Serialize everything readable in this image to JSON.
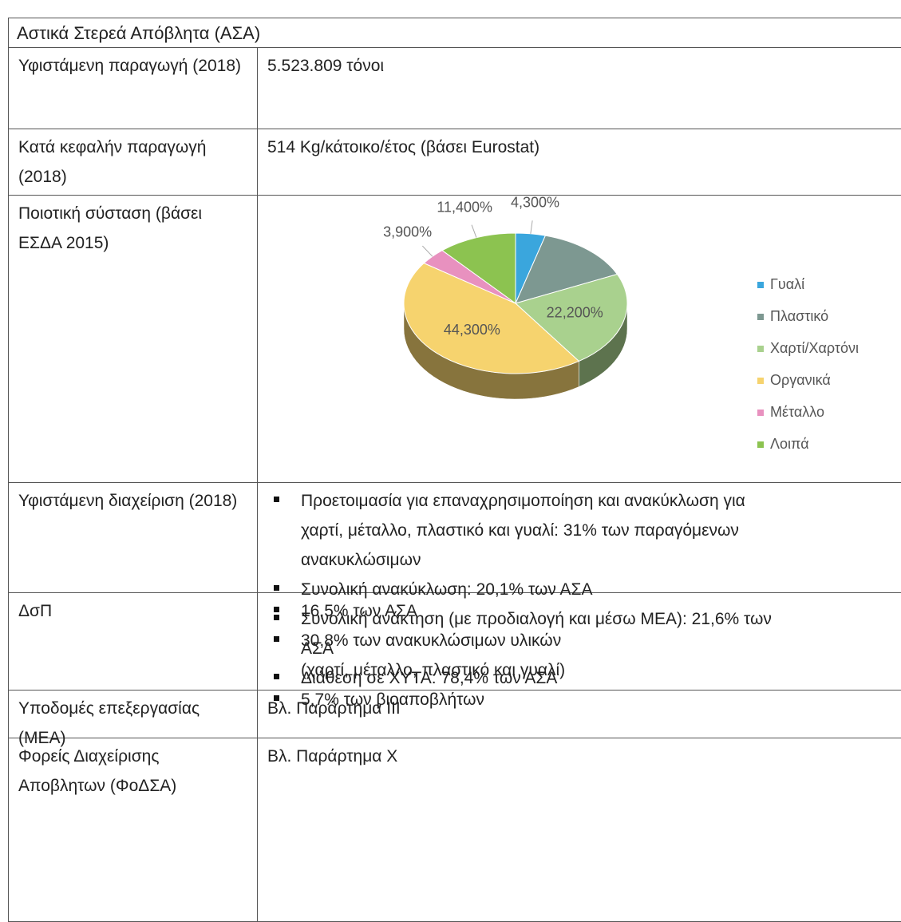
{
  "table": {
    "header": "Αστικά Στερεά Απόβλητα (ΑΣΑ)",
    "rows": [
      {
        "label": "Υφιστάμενη παραγωγή (2018)",
        "text": "5.523.809 τόνοι"
      },
      {
        "label": "Κατά κεφαλήν παραγωγή (2018)",
        "text": "514 Kg/κάτοικο/έτος (βάσει Eurostat)"
      },
      {
        "label": "Ποιοτική σύσταση (βάσει ΕΣΔΑ 2015)",
        "chart": {
          "type": "pie",
          "categories": [
            "Γυαλί",
            "Πλαστικό",
            "Χαρτί/Χαρτόνι",
            "Οργανικά",
            "Μέταλλο",
            "Λοιπά"
          ],
          "values": [
            4.3,
            13.9,
            22.2,
            44.3,
            3.9,
            11.4
          ],
          "value_labels": [
            "4,300%",
            null,
            "22,200%",
            "44,300%",
            "3,900%",
            "11,400%"
          ],
          "colors": [
            "#3aa6dd",
            "#7d9891",
            "#a9d18e",
            "#f6d36e",
            "#e891bf",
            "#8cc350"
          ],
          "legend": "right"
        }
      },
      {
        "label": "Υφιστάμενη διαχείριση (2018)",
        "items": [
          [
            "Προετοιμασία για επαναχρησιμοποίηση και ανακύκλωση για",
            "χαρτί, μέταλλο, πλαστικό και γυαλί: 31% των παραγόμενων",
            "ανακυκλώσιμων"
          ],
          [
            "Συνολική ανακύκλωση: 20,1% των ΑΣΑ"
          ],
          [
            "Συνολική ανάκτηση (με προδιαλογή και μέσω ΜΕΑ): 21,6% των",
            "ΑΣΑ"
          ],
          [
            "Διάθεση σε ΧΥΤΑ: 78,4% των ΑΣΑ"
          ]
        ]
      },
      {
        "label": "ΔσΠ",
        "items": [
          [
            "16,5% των ΑΣΑ"
          ],
          [
            "30,8% των ανακυκλώσιμων υλικών",
            "(χαρτί, μέταλλο, πλαστικό και γυαλί)"
          ],
          [
            "5,7% των βιοαποβλήτων"
          ]
        ]
      },
      {
        "label": "Υποδομές επεξεργασίας (ΜΕΑ)",
        "text": "Βλ. Παράρτημα ΙΙΙ"
      },
      {
        "label": "Φορείς Διαχείρισης Αποβλητων (ΦοΔΣΑ)",
        "text": "Βλ. Παράρτημα Χ"
      }
    ]
  }
}
